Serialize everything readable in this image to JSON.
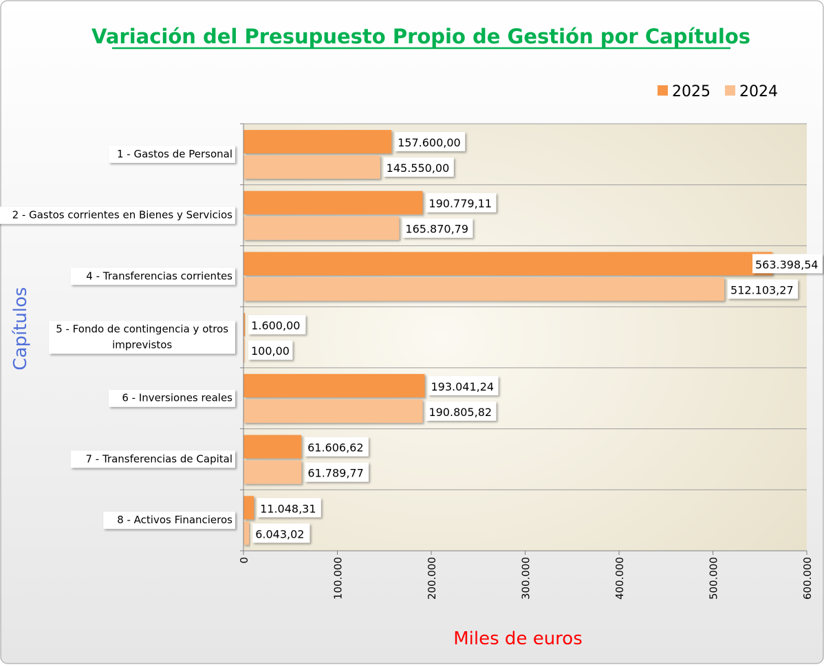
{
  "chart_data": {
    "type": "bar",
    "orientation": "horizontal",
    "title": "Variación del Presupuesto Propio de Gestión por Capítulos",
    "xlabel": "Miles de euros",
    "ylabel": "Capítulos",
    "xlim": [
      0,
      600000
    ],
    "xticks": [
      0,
      100000,
      200000,
      300000,
      400000,
      500000,
      600000
    ],
    "xtick_labels": [
      "0",
      "100.000",
      "200.000",
      "300.000",
      "400.000",
      "500.000",
      "600.000"
    ],
    "legend_position": "top-right",
    "categories": [
      "1 - Gastos de Personal",
      "2 - Gastos corrientes en Bienes y Servicios",
      "4 - Transferencias corrientes",
      "5 - Fondo de contingencia y otros imprevistos",
      "6 - Inversiones reales",
      "7 - Transferencias de Capital",
      "8 - Activos Financieros"
    ],
    "series": [
      {
        "name": "2025",
        "color": "#f79646",
        "values": [
          157600.0,
          190779.11,
          563398.54,
          1600.0,
          193041.24,
          61606.62,
          11048.31
        ],
        "labels": [
          "157.600,00",
          "190.779,11",
          "563.398,54",
          "1.600,00",
          "193.041,24",
          "61.606,62",
          "11.048,31"
        ]
      },
      {
        "name": "2024",
        "color": "#fac090",
        "values": [
          145550.0,
          165870.79,
          512103.27,
          100.0,
          190805.82,
          61789.77,
          6043.02
        ],
        "labels": [
          "145.550,00",
          "165.870,79",
          "512.103,27",
          "100,00",
          "190.805,82",
          "61.789,77",
          "6.043,02"
        ]
      }
    ],
    "colors": {
      "title": "#00b050",
      "ylabel": "#4f6fd9",
      "xlabel": "#ff0000"
    }
  }
}
